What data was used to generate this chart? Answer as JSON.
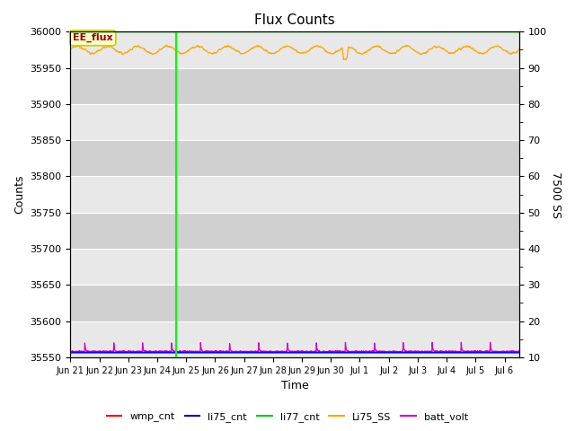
{
  "title": "Flux Counts",
  "xlabel": "Time",
  "ylabel_left": "Counts",
  "ylabel_right": "7500 SS",
  "annotation": "EE_flux",
  "ylim_left": [
    35550,
    36000
  ],
  "ylim_right": [
    10,
    100
  ],
  "yticks_left": [
    35550,
    35600,
    35650,
    35700,
    35750,
    35800,
    35850,
    35900,
    35950,
    36000
  ],
  "yticks_right": [
    10,
    20,
    30,
    40,
    50,
    60,
    70,
    80,
    90,
    100
  ],
  "xtick_labels": [
    "Jun 21",
    "Jun 22",
    "Jun 23",
    "Jun 24",
    "Jun 25",
    "Jun 26",
    "Jun 27",
    "Jun 28",
    "Jun 29",
    "Jun 30",
    "Jul 1",
    "Jul 2",
    "Jul 3",
    "Jul 4",
    "Jul 5",
    "Jul 6"
  ],
  "xtick_positions": [
    0,
    1,
    2,
    3,
    4,
    5,
    6,
    7,
    8,
    9,
    10,
    11,
    12,
    13,
    14,
    15
  ],
  "xlim": [
    0,
    15.5
  ],
  "vline_x": 3.65,
  "vline_color": "#00ff00",
  "li77_line_y": 36000,
  "li77_color": "#00cc00",
  "li75_SS_color": "#ffa500",
  "batt_volt_color": "#cc00cc",
  "wmp_cnt_color": "#ff0000",
  "li75_cnt_color": "#0000ff",
  "bg_color": "#e8e8e8",
  "bg_alt_color": "#d8d8d8",
  "legend_items": [
    {
      "label": "wmp_cnt",
      "color": "#ff0000"
    },
    {
      "label": "li75_cnt",
      "color": "#0000cc"
    },
    {
      "label": "li77_cnt",
      "color": "#00cc00"
    },
    {
      "label": "Li75_SS",
      "color": "#ffa500"
    },
    {
      "label": "batt_volt",
      "color": "#cc00cc"
    }
  ],
  "figsize": [
    6.4,
    4.8
  ],
  "dpi": 100
}
